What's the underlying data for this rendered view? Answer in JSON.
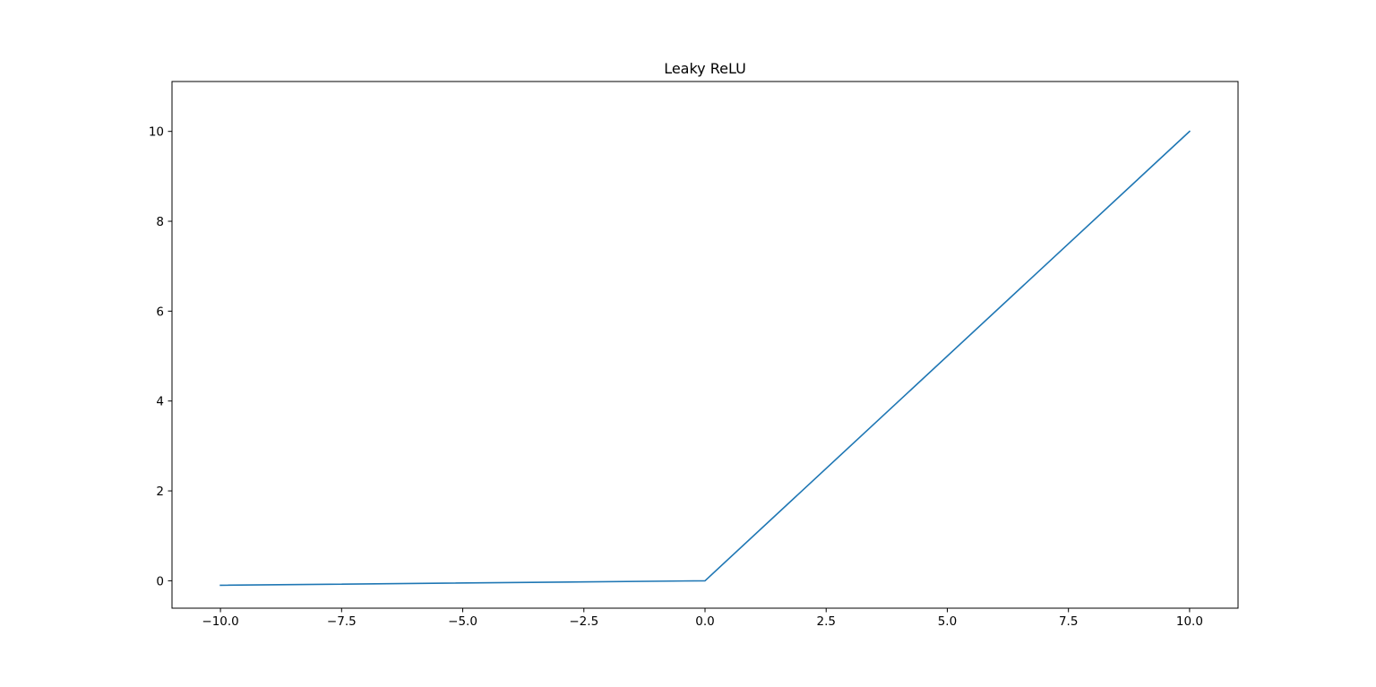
{
  "chart_data": {
    "type": "line",
    "title": "Leaky ReLU",
    "xlabel": "",
    "ylabel": "",
    "xlim": [
      -11.0,
      11.0
    ],
    "ylim": [
      -0.61,
      11.11
    ],
    "grid": false,
    "x_ticks": [
      -10.0,
      -7.5,
      -5.0,
      -2.5,
      0.0,
      2.5,
      5.0,
      7.5,
      10.0
    ],
    "x_tick_labels": [
      "−10.0",
      "−7.5",
      "−5.0",
      "−2.5",
      "0.0",
      "2.5",
      "5.0",
      "7.5",
      "10.0"
    ],
    "y_ticks": [
      0,
      2,
      4,
      6,
      8,
      10
    ],
    "y_tick_labels": [
      "0",
      "2",
      "4",
      "6",
      "8",
      "10"
    ],
    "series": [
      {
        "color": "#1f77b4",
        "x": [
          -10.0,
          0.0,
          10.0
        ],
        "y": [
          -0.1,
          0.0,
          10.0
        ]
      }
    ]
  }
}
